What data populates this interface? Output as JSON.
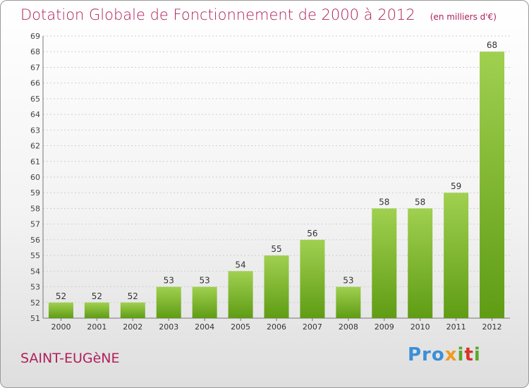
{
  "title": "Dotation Globale de Fonctionnement de 2000 à 2012",
  "unit": "(en milliers d'€)",
  "town": "SAINT-EUGèNE",
  "logo": {
    "p1": "Pro",
    "p2": "x",
    "p3": "i",
    "p4": "t",
    "p5": "i"
  },
  "colors": {
    "bar_light": "#a0d050",
    "bar_dark": "#5f9c14",
    "title": "#b0205a"
  },
  "chart_data": {
    "type": "bar",
    "categories": [
      "2000",
      "2001",
      "2002",
      "2003",
      "2004",
      "2005",
      "2006",
      "2007",
      "2008",
      "2009",
      "2010",
      "2011",
      "2012"
    ],
    "values": [
      52,
      52,
      52,
      53,
      53,
      54,
      55,
      56,
      53,
      58,
      58,
      59,
      68
    ],
    "ylim": [
      51,
      69
    ],
    "yticks": [
      51,
      52,
      53,
      54,
      55,
      56,
      57,
      58,
      59,
      60,
      61,
      62,
      63,
      64,
      65,
      66,
      67,
      68,
      69
    ],
    "grid": true,
    "xlabel": "",
    "ylabel": ""
  }
}
